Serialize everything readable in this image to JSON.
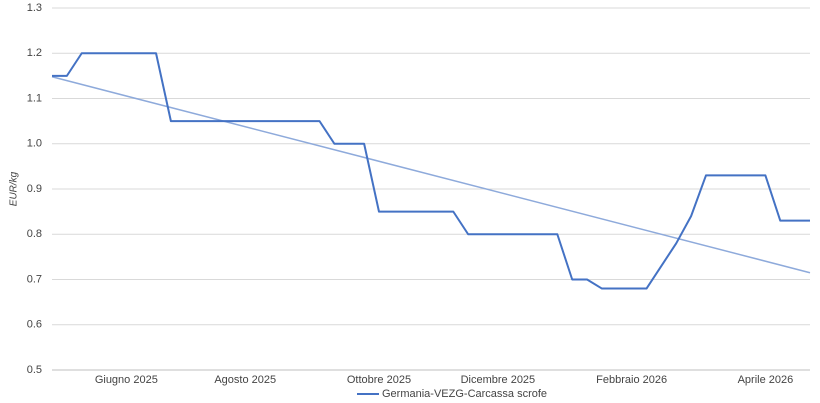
{
  "chart_data": {
    "type": "line",
    "y_label": "EUR/kg",
    "categories": [
      null,
      null,
      null,
      null,
      null,
      "Giugno 2025",
      null,
      null,
      null,
      null,
      null,
      null,
      null,
      "Agosto 2025",
      null,
      null,
      null,
      null,
      null,
      null,
      null,
      null,
      "Ottobre 2025",
      null,
      null,
      null,
      null,
      null,
      null,
      null,
      "Dicembre 2025",
      null,
      null,
      null,
      null,
      null,
      null,
      null,
      null,
      "Febbraio 2026",
      null,
      null,
      null,
      null,
      null,
      null,
      null,
      null,
      "Aprile 2026",
      null,
      null,
      null
    ],
    "series": [
      {
        "name": "Germania-VEZG-Carcassa scrofe",
        "color": "#4472c4",
        "values": [
          1.15,
          1.15,
          1.2,
          1.2,
          1.2,
          1.2,
          1.2,
          1.2,
          1.05,
          1.05,
          1.05,
          1.05,
          1.05,
          1.05,
          1.05,
          1.05,
          1.05,
          1.05,
          1.05,
          1.0,
          1.0,
          1.0,
          0.85,
          0.85,
          0.85,
          0.85,
          0.85,
          0.85,
          0.8,
          0.8,
          0.8,
          0.8,
          0.8,
          0.8,
          0.8,
          0.7,
          0.7,
          0.68,
          0.68,
          0.68,
          0.68,
          0.73,
          0.78,
          0.84,
          0.93,
          0.93,
          0.93,
          0.93,
          0.93,
          0.83,
          0.83,
          0.83
        ]
      }
    ],
    "trendline": {
      "color": "#8eaadb",
      "values": [
        1.148,
        0.715
      ]
    },
    "ylim": [
      0.5,
      1.3
    ],
    "yticks": [
      0.5,
      0.6,
      0.7,
      0.8,
      0.9,
      {
        "value": 1,
        "label": "1.0"
      },
      1.1,
      1.2,
      1.3
    ],
    "grid": true,
    "legend": "bottom"
  }
}
